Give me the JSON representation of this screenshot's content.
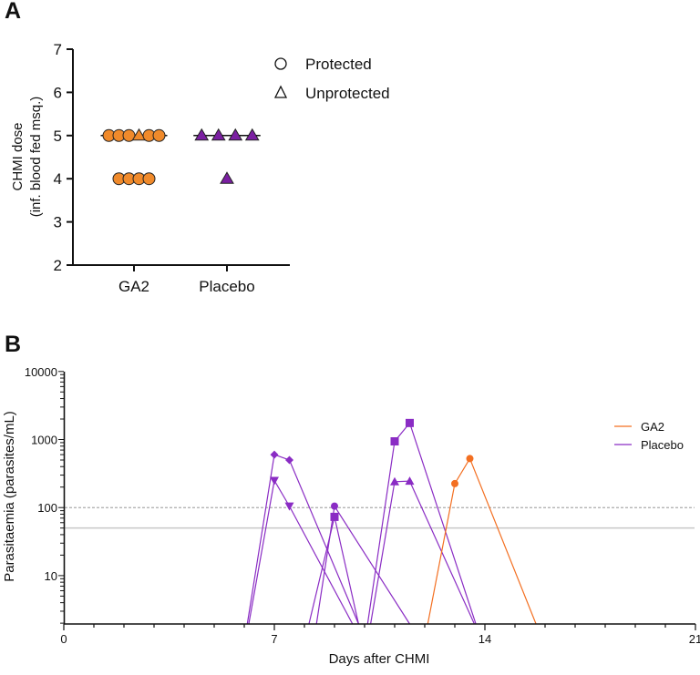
{
  "chart_data": [
    {
      "panel_label": "A",
      "type": "scatter",
      "ylabel_line1": "CHMI dose",
      "ylabel_line2": "(inf. blood fed msq.)",
      "ylim": [
        2,
        7
      ],
      "yticks": [
        "2",
        "3",
        "4",
        "5",
        "6",
        "7"
      ],
      "categories": [
        "GA2",
        "Placebo"
      ],
      "legend": [
        {
          "label": "Protected",
          "marker": "circle"
        },
        {
          "label": "Unprotected",
          "marker": "triangle"
        }
      ],
      "legend_placement": "top-right",
      "medians": [
        5,
        5
      ],
      "groups": [
        {
          "name": "GA2",
          "color": "#f08a2b",
          "rows": [
            {
              "dose": 5,
              "markers": [
                "circle",
                "circle",
                "circle",
                "triangle",
                "circle",
                "circle"
              ]
            },
            {
              "dose": 4,
              "markers": [
                "circle",
                "circle",
                "circle",
                "circle"
              ]
            }
          ]
        },
        {
          "name": "Placebo",
          "color": "#7b1fa2",
          "rows": [
            {
              "dose": 5,
              "markers": [
                "triangle",
                "triangle",
                "triangle",
                "triangle"
              ]
            },
            {
              "dose": 4,
              "markers": [
                "triangle"
              ]
            }
          ]
        }
      ]
    },
    {
      "panel_label": "B",
      "type": "line",
      "xlabel": "Days after CHMI",
      "ylabel": "Parasitaemia (parasites/mL)",
      "xlim": [
        0,
        21
      ],
      "xticks": [
        "0",
        "7",
        "14",
        "21"
      ],
      "yscale": "log",
      "ylim": [
        2,
        10000
      ],
      "yticks": [
        "10",
        "100",
        "1000",
        "10000"
      ],
      "reference_lines": [
        {
          "value": 100,
          "style": "dashed"
        },
        {
          "value": 50,
          "style": "solid"
        }
      ],
      "legend": [
        {
          "label": "GA2",
          "color": "#f36f21"
        },
        {
          "label": "Placebo",
          "color": "#8a2cc4"
        }
      ],
      "legend_placement": "top-right",
      "series": [
        {
          "group": "Placebo",
          "marker": "diamond",
          "points": [
            [
              6.1,
              null
            ],
            [
              7,
              600
            ],
            [
              7.5,
              500
            ],
            [
              9.8,
              null
            ]
          ]
        },
        {
          "group": "Placebo",
          "marker": "triangle-down",
          "points": [
            [
              6.15,
              null
            ],
            [
              7,
              250
            ],
            [
              7.5,
              105
            ],
            [
              9.6,
              null
            ]
          ]
        },
        {
          "group": "Placebo",
          "marker": "circle",
          "points": [
            [
              8.4,
              null
            ],
            [
              9,
              105
            ],
            [
              11.5,
              null
            ]
          ]
        },
        {
          "group": "Placebo",
          "marker": "square",
          "points": [
            [
              8.15,
              null
            ],
            [
              9,
              73
            ],
            [
              9.8,
              null
            ]
          ]
        },
        {
          "group": "Placebo",
          "marker": "square",
          "points": [
            [
              10.1,
              null
            ],
            [
              11,
              940
            ],
            [
              11.5,
              1750
            ],
            [
              13.7,
              null
            ]
          ]
        },
        {
          "group": "Placebo",
          "marker": "triangle",
          "points": [
            [
              10.2,
              null
            ],
            [
              11,
              240
            ],
            [
              11.5,
              245
            ],
            [
              13.65,
              null
            ]
          ]
        },
        {
          "group": "GA2",
          "marker": "circle",
          "points": [
            [
              12.1,
              null
            ],
            [
              13,
              225
            ],
            [
              13.5,
              525
            ],
            [
              15.7,
              null
            ]
          ]
        }
      ]
    }
  ]
}
